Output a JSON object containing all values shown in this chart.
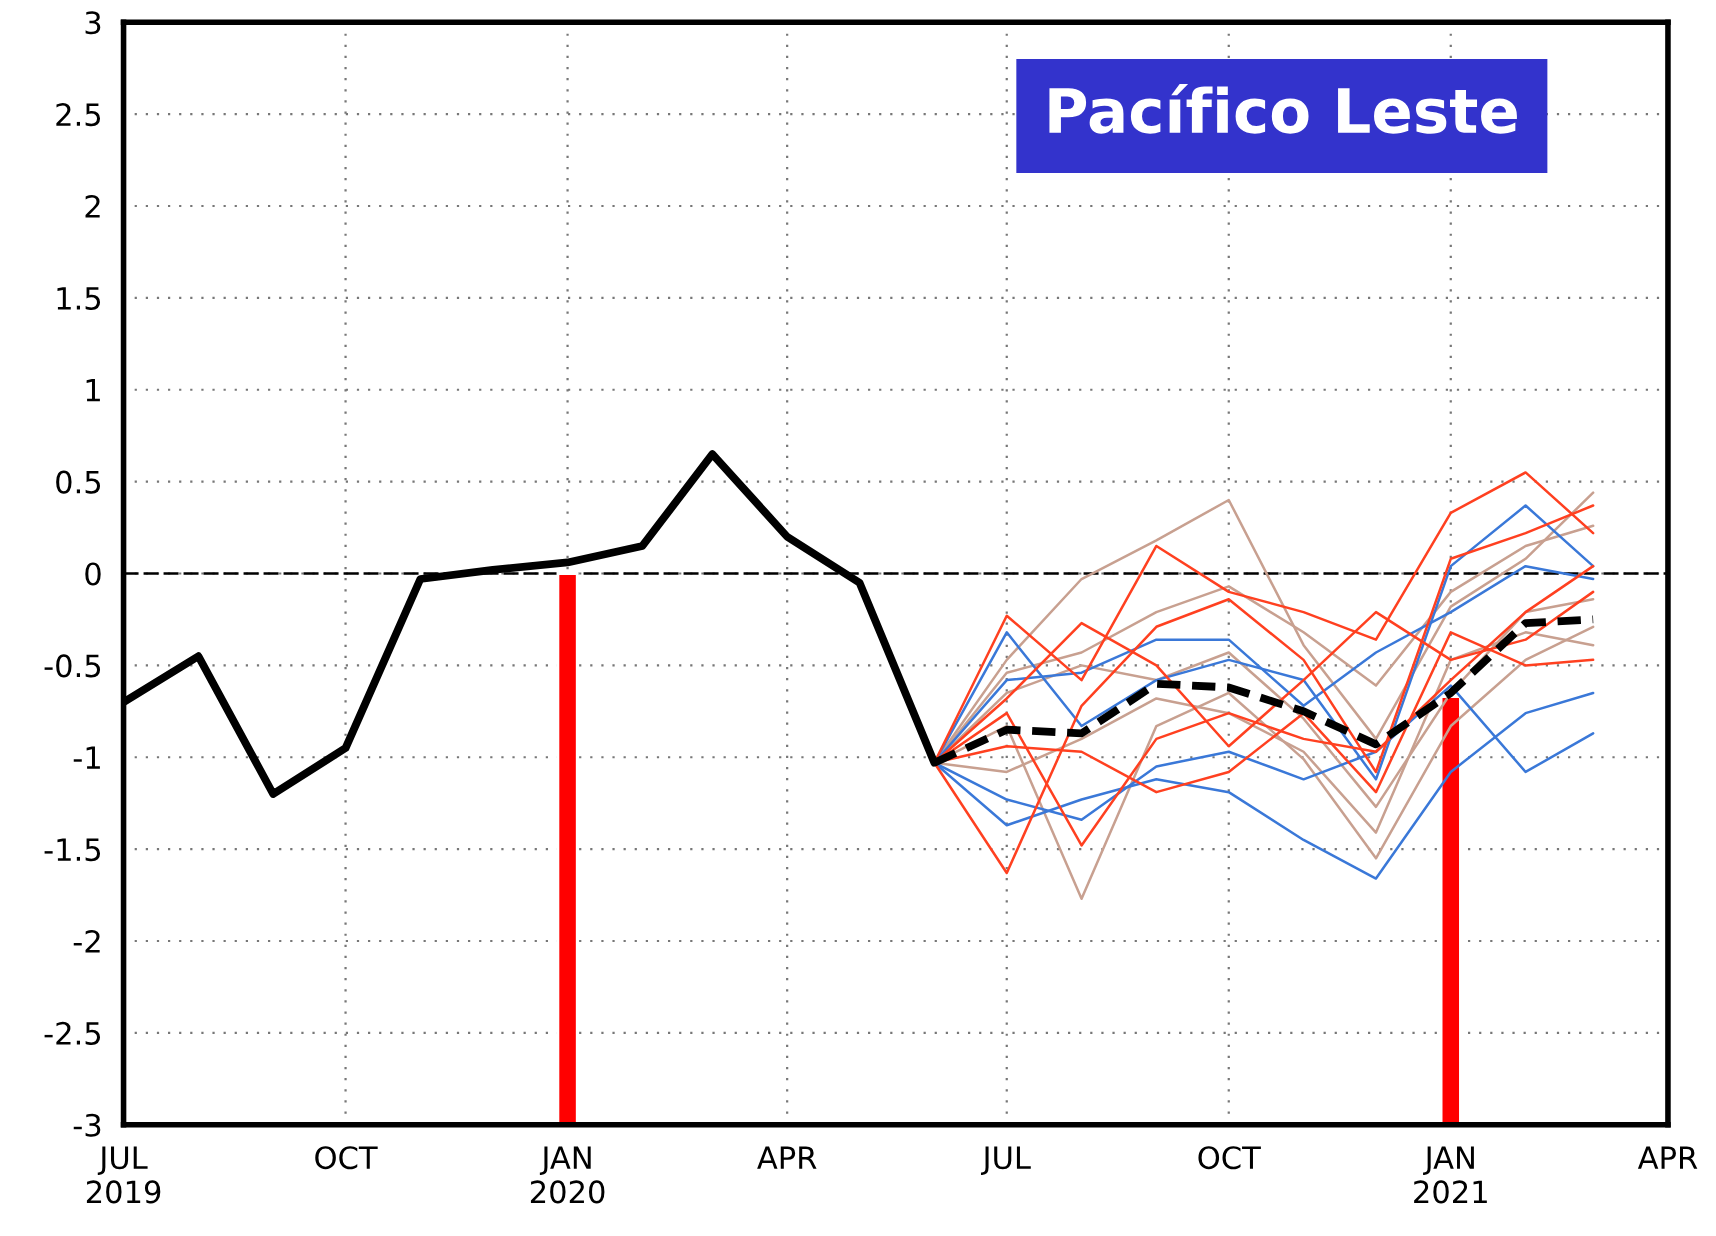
{
  "chart_data": {
    "type": "line",
    "title": "Pacífico Leste",
    "xlim": [
      "2019-07",
      "2021-04"
    ],
    "xticks": [
      {
        "value": "2019-07",
        "label": "JUL\n2019"
      },
      {
        "value": "2019-10",
        "label": "OCT"
      },
      {
        "value": "2020-01",
        "label": "JAN\n2020"
      },
      {
        "value": "2020-04",
        "label": "APR"
      },
      {
        "value": "2020-07",
        "label": "JUL"
      },
      {
        "value": "2020-10",
        "label": "OCT"
      },
      {
        "value": "2021-01",
        "label": "JAN\n2021"
      },
      {
        "value": "2021-04",
        "label": "APR"
      }
    ],
    "ylim": [
      -3,
      3
    ],
    "yticks": [
      -3,
      -2.5,
      -2,
      -1.5,
      -1,
      -0.5,
      0,
      0.5,
      1,
      1.5,
      2,
      2.5,
      3
    ],
    "grid": true,
    "ref_lines": [
      {
        "axis": "y",
        "value": 0,
        "color": "#000000",
        "line_style": "dashed"
      }
    ],
    "series": [
      {
        "color": "#c8a090",
        "x": [
          "2020-06",
          "2020-07",
          "2020-08",
          "2020-09",
          "2020-10",
          "2020-11",
          "2020-12",
          "2021-01",
          "2021-02",
          "2021-03"
        ],
        "values": [
          -1.03,
          -0.47,
          -0.03,
          0.18,
          0.4,
          -0.39,
          -0.9,
          -0.18,
          0.08,
          0.44
        ]
      },
      {
        "color": "#c8a090",
        "x": [
          "2020-06",
          "2020-07",
          "2020-08",
          "2020-09",
          "2020-10",
          "2020-11",
          "2020-12",
          "2021-01",
          "2021-02",
          "2021-03"
        ],
        "values": [
          -1.03,
          -0.83,
          -1.77,
          -0.83,
          -0.65,
          -1.01,
          -1.55,
          -0.83,
          -0.47,
          -0.29
        ]
      },
      {
        "color": "#c8a090",
        "x": [
          "2020-06",
          "2020-07",
          "2020-08",
          "2020-09",
          "2020-10",
          "2020-11",
          "2020-12",
          "2021-01",
          "2021-02",
          "2021-03"
        ],
        "values": [
          -1.03,
          -0.54,
          -0.43,
          -0.21,
          -0.07,
          -0.32,
          -0.61,
          -0.1,
          0.15,
          0.26
        ]
      },
      {
        "color": "#c8a090",
        "x": [
          "2020-06",
          "2020-07",
          "2020-08",
          "2020-09",
          "2020-10",
          "2020-11",
          "2020-12",
          "2021-01",
          "2021-02",
          "2021-03"
        ],
        "values": [
          -1.03,
          -1.08,
          -0.9,
          -0.68,
          -0.76,
          -0.97,
          -1.41,
          -0.47,
          -0.32,
          -0.39
        ]
      },
      {
        "color": "#c8a090",
        "x": [
          "2020-06",
          "2020-07",
          "2020-08",
          "2020-09",
          "2020-10",
          "2020-11",
          "2020-12",
          "2021-01",
          "2021-02",
          "2021-03"
        ],
        "values": [
          -1.03,
          -0.65,
          -0.5,
          -0.58,
          -0.43,
          -0.79,
          -1.27,
          -0.65,
          -0.21,
          -0.14
        ]
      },
      {
        "color": "#3a78d8",
        "x": [
          "2020-06",
          "2020-07",
          "2020-08",
          "2020-09",
          "2020-10",
          "2020-11",
          "2020-12",
          "2021-01",
          "2021-02",
          "2021-03"
        ],
        "values": [
          -1.03,
          -0.32,
          -0.83,
          -0.58,
          -0.47,
          -0.58,
          -1.12,
          0.04,
          0.37,
          0.04
        ]
      },
      {
        "color": "#3a78d8",
        "x": [
          "2020-06",
          "2020-07",
          "2020-08",
          "2020-09",
          "2020-10",
          "2020-11",
          "2020-12",
          "2021-01",
          "2021-02",
          "2021-03"
        ],
        "values": [
          -1.03,
          -1.37,
          -1.23,
          -1.12,
          -1.19,
          -1.45,
          -1.66,
          -1.08,
          -0.76,
          -0.65
        ]
      },
      {
        "color": "#3a78d8",
        "x": [
          "2020-06",
          "2020-07",
          "2020-08",
          "2020-09",
          "2020-10",
          "2020-11",
          "2020-12",
          "2021-01",
          "2021-02",
          "2021-03"
        ],
        "values": [
          -1.03,
          -1.23,
          -1.34,
          -1.05,
          -0.97,
          -1.12,
          -0.97,
          -0.61,
          -1.08,
          -0.87
        ]
      },
      {
        "color": "#3a78d8",
        "x": [
          "2020-06",
          "2020-07",
          "2020-08",
          "2020-09",
          "2020-10",
          "2020-11",
          "2020-12",
          "2021-01",
          "2021-02",
          "2021-03"
        ],
        "values": [
          -1.03,
          -0.58,
          -0.54,
          -0.36,
          -0.36,
          -0.72,
          -0.43,
          -0.21,
          0.04,
          -0.03
        ]
      },
      {
        "color": "#ff4020",
        "x": [
          "2020-06",
          "2020-07",
          "2020-08",
          "2020-09",
          "2020-10",
          "2020-11",
          "2020-12",
          "2021-01",
          "2021-02",
          "2021-03"
        ],
        "values": [
          -1.03,
          -0.23,
          -0.58,
          0.15,
          -0.1,
          -0.21,
          -0.36,
          0.33,
          0.55,
          0.22
        ]
      },
      {
        "color": "#ff4020",
        "x": [
          "2020-06",
          "2020-07",
          "2020-08",
          "2020-09",
          "2020-10",
          "2020-11",
          "2020-12",
          "2021-01",
          "2021-02",
          "2021-03"
        ],
        "values": [
          -1.03,
          -1.63,
          -0.72,
          -0.29,
          -0.14,
          -0.47,
          -1.08,
          0.08,
          0.22,
          0.37
        ]
      },
      {
        "color": "#ff4020",
        "x": [
          "2020-06",
          "2020-07",
          "2020-08",
          "2020-09",
          "2020-10",
          "2020-11",
          "2020-12",
          "2021-01",
          "2021-02",
          "2021-03"
        ],
        "values": [
          -1.03,
          -0.68,
          -0.27,
          -0.5,
          -0.94,
          -0.58,
          -0.21,
          -0.47,
          -0.36,
          -0.1
        ]
      },
      {
        "color": "#ff4020",
        "x": [
          "2020-06",
          "2020-07",
          "2020-08",
          "2020-09",
          "2020-10",
          "2020-11",
          "2020-12",
          "2021-01",
          "2021-02",
          "2021-03"
        ],
        "values": [
          -1.03,
          -0.94,
          -0.97,
          -1.19,
          -1.08,
          -0.76,
          -1.19,
          -0.32,
          -0.5,
          -0.47
        ]
      },
      {
        "color": "#ff4020",
        "x": [
          "2020-06",
          "2020-07",
          "2020-08",
          "2020-09",
          "2020-10",
          "2020-11",
          "2020-12",
          "2021-01",
          "2021-02",
          "2021-03"
        ],
        "values": [
          -1.03,
          -0.76,
          -1.48,
          -0.9,
          -0.76,
          -0.9,
          -0.97,
          -0.58,
          -0.21,
          0.04
        ]
      },
      {
        "color": "#000000",
        "x": [
          "2019-07",
          "2019-08",
          "2019-09",
          "2019-10",
          "2019-11",
          "2019-12",
          "2020-01",
          "2020-02",
          "2020-03",
          "2020-04",
          "2020-05",
          "2020-06"
        ],
        "values": [
          -0.7,
          -0.45,
          -1.2,
          -0.95,
          -0.03,
          0.02,
          0.06,
          0.15,
          0.65,
          0.2,
          -0.05,
          -1.03
        ]
      },
      {
        "color": "#000000",
        "line_style": "dashed",
        "x": [
          "2020-06",
          "2020-07",
          "2020-08",
          "2020-09",
          "2020-10",
          "2020-11",
          "2020-12",
          "2021-01",
          "2021-02",
          "2021-03"
        ],
        "values": [
          -1.03,
          -0.85,
          -0.87,
          -0.6,
          -0.62,
          -0.75,
          -0.93,
          -0.65,
          -0.27,
          -0.25
        ]
      },
      {
        "type": "bar",
        "color": "#ff0000",
        "x": [
          "2020-01",
          "2021-01"
        ],
        "base": [
          -3,
          -3
        ],
        "values": [
          3,
          2.33
        ]
      }
    ]
  }
}
